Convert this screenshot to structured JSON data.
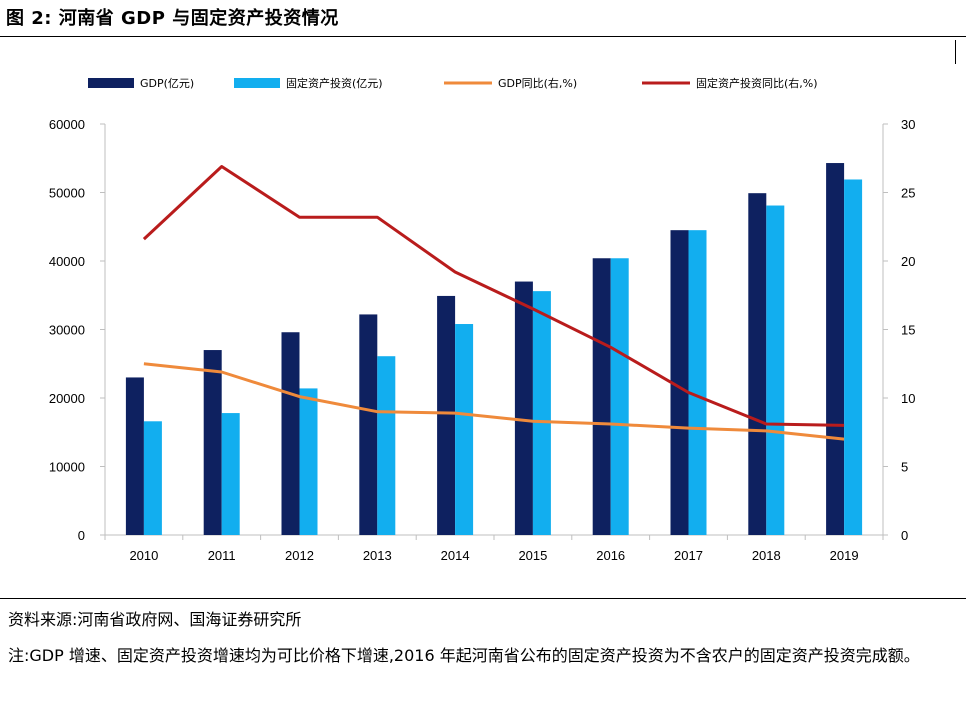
{
  "title": "图 2:  河南省 GDP 与固定资产投资情况",
  "source": "资料来源:河南省政府网、国海证券研究所",
  "note": "注:GDP 增速、固定资产投资增速均为可比价格下增速,2016 年起河南省公布的固定资产投资为不含农户的固定资产投资完成额。",
  "colors": {
    "gdp": "#0e2160",
    "fai": "#12aeef",
    "gdp_yoy": "#ef8a3b",
    "fai_yoy": "#b91c1c"
  },
  "chart_data": {
    "type": "bar",
    "categories": [
      "2010",
      "2011",
      "2012",
      "2013",
      "2014",
      "2015",
      "2016",
      "2017",
      "2018",
      "2019"
    ],
    "series": [
      {
        "name": "GDP(亿元)",
        "type": "bar",
        "axis": "left",
        "values": [
          23000,
          27000,
          29600,
          32200,
          34900,
          37000,
          40400,
          44500,
          49900,
          54300
        ]
      },
      {
        "name": "固定资产投资(亿元)",
        "type": "bar",
        "axis": "left",
        "values": [
          16600,
          17800,
          21400,
          26100,
          30800,
          35600,
          40400,
          44500,
          48100,
          51900
        ]
      },
      {
        "name": "GDP同比(右,%)",
        "type": "line",
        "axis": "right",
        "values": [
          12.5,
          11.9,
          10.1,
          9.0,
          8.9,
          8.3,
          8.1,
          7.8,
          7.6,
          7.0
        ]
      },
      {
        "name": "固定资产投资同比(右,%)",
        "type": "line",
        "axis": "right",
        "values": [
          21.6,
          26.9,
          23.2,
          23.2,
          19.2,
          16.5,
          13.7,
          10.4,
          8.1,
          8.0
        ]
      }
    ],
    "y_left": {
      "ylim": [
        0,
        60000
      ],
      "ticks": [
        "0",
        "10000",
        "20000",
        "30000",
        "40000",
        "50000",
        "60000"
      ]
    },
    "y_right": {
      "ylim": [
        0,
        30
      ],
      "ticks": [
        "0",
        "5",
        "10",
        "15",
        "20",
        "25",
        "30"
      ]
    },
    "legend_position": "top",
    "grid": false
  }
}
